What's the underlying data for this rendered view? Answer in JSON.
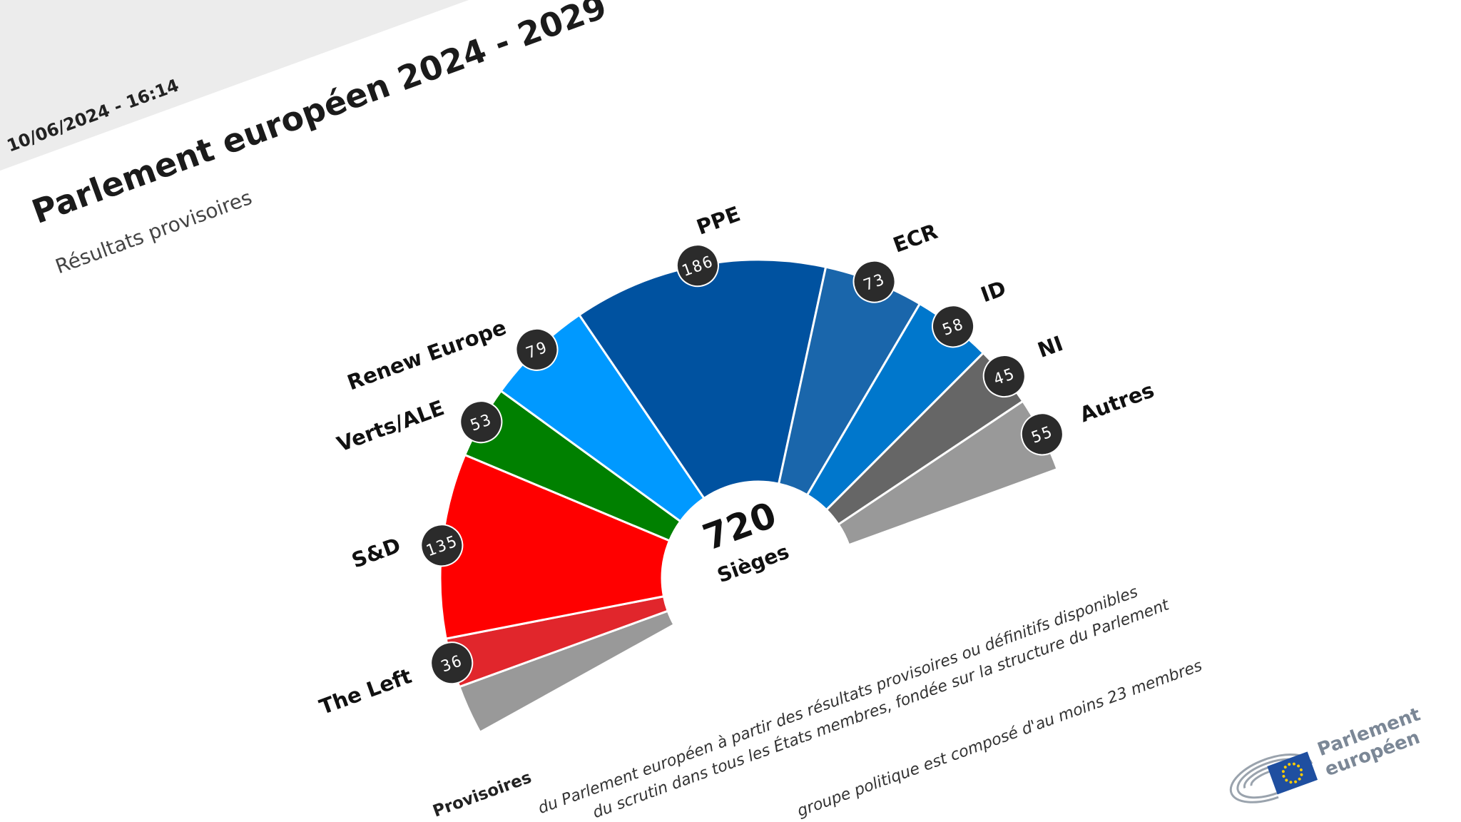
{
  "header": {
    "timestamp": "10/06/2024 - 16:14",
    "title": "Parlement européen 2024 - 2029",
    "subtitle": "Résultats provisoires"
  },
  "chart_data": {
    "type": "pie",
    "variant": "hemicycle",
    "total": 720,
    "center_value": "720",
    "center_label": "Sièges",
    "categories": [
      "The Left",
      "S&D",
      "Verts/ALE",
      "Renew Europe",
      "PPE",
      "ECR",
      "ID",
      "NI",
      "Autres"
    ],
    "values": [
      36,
      135,
      53,
      79,
      186,
      73,
      58,
      45,
      55
    ],
    "colors": [
      "#e1262c",
      "#ff0000",
      "#008000",
      "#0099ff",
      "#0052a0",
      "#1a66ab",
      "#0077cc",
      "#666666",
      "#999999"
    ],
    "data_labels": true,
    "legend": "none"
  },
  "footer": {
    "heading": "Provisoires",
    "lines": [
      "du Parlement européen à partir des résultats provisoires ou définitifs disponibles",
      "du scrutin dans tous les États membres, fondée sur la structure du Parlement",
      "groupe politique est composé d'au moins 23 membres"
    ]
  },
  "logo": {
    "line1": "Parlement",
    "line2": "européen",
    "icon": "eu-flag-hemicycle-icon"
  },
  "colors": {
    "header_band": "#ececec",
    "badge": "#2b2b2b",
    "logo_text": "#7b8796",
    "eu_blue": "#1f4fa0",
    "eu_gold": "#ffcc00"
  }
}
